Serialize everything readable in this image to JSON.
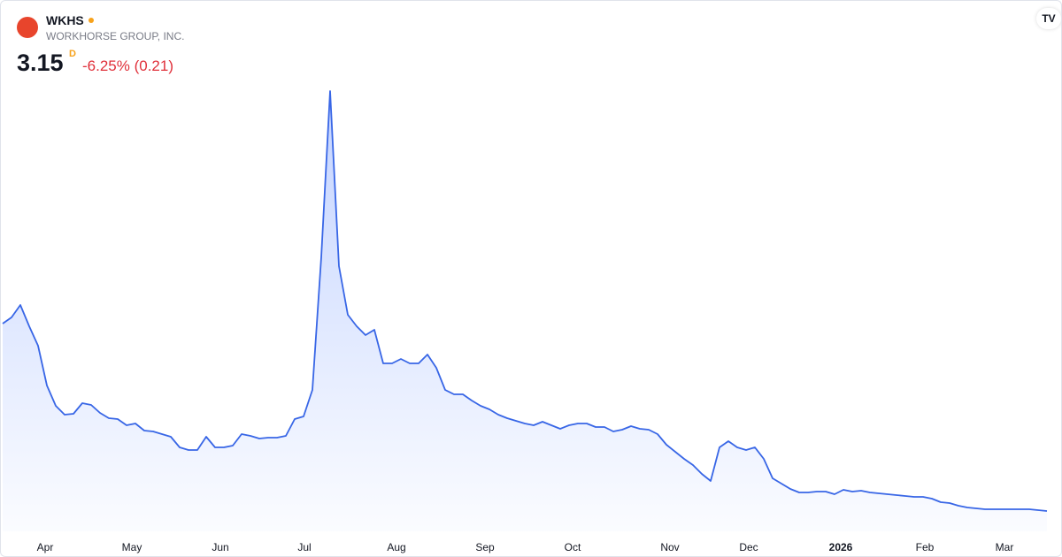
{
  "header": {
    "symbol": "WKHS",
    "name": "WORKHORSE GROUP, INC.",
    "price": "3.15",
    "interval": "D",
    "change": "-6.25% (0.21)"
  },
  "chart_data": {
    "type": "area",
    "color": "#3866e6",
    "x_labels": [
      "Apr",
      "May",
      "Jun",
      "Jul",
      "Aug",
      "Sep",
      "Oct",
      "Nov",
      "Dec",
      "2026",
      "Feb",
      "Mar"
    ],
    "values": [
      13.75,
      14.1,
      14.8,
      13.6,
      12.5,
      10.25,
      9.1,
      8.6,
      8.65,
      9.25,
      9.15,
      8.7,
      8.4,
      8.35,
      8.0,
      8.1,
      7.7,
      7.65,
      7.5,
      7.35,
      6.75,
      6.6,
      6.6,
      7.35,
      6.75,
      6.75,
      6.85,
      7.5,
      7.4,
      7.25,
      7.3,
      7.3,
      7.4,
      8.35,
      8.5,
      10.0,
      17.5,
      26.9,
      17.0,
      14.25,
      13.6,
      13.1,
      13.4,
      11.5,
      11.5,
      11.75,
      11.5,
      11.5,
      12.0,
      11.25,
      10.0,
      9.75,
      9.75,
      9.4,
      9.1,
      8.9,
      8.6,
      8.4,
      8.25,
      8.1,
      8.0,
      8.2,
      8.0,
      7.8,
      8.0,
      8.1,
      8.1,
      7.9,
      7.9,
      7.65,
      7.75,
      7.95,
      7.8,
      7.75,
      7.5,
      6.9,
      6.5,
      6.1,
      5.75,
      5.25,
      4.85,
      6.75,
      7.1,
      6.75,
      6.6,
      6.75,
      6.1,
      5.0,
      4.7,
      4.4,
      4.2,
      4.2,
      4.25,
      4.25,
      4.1,
      4.35,
      4.25,
      4.3,
      4.2,
      4.15,
      4.1,
      4.05,
      4.0,
      3.95,
      3.95,
      3.85,
      3.65,
      3.6,
      3.45,
      3.35,
      3.3,
      3.25,
      3.25,
      3.25,
      3.25,
      3.25,
      3.25,
      3.2,
      3.15
    ]
  }
}
